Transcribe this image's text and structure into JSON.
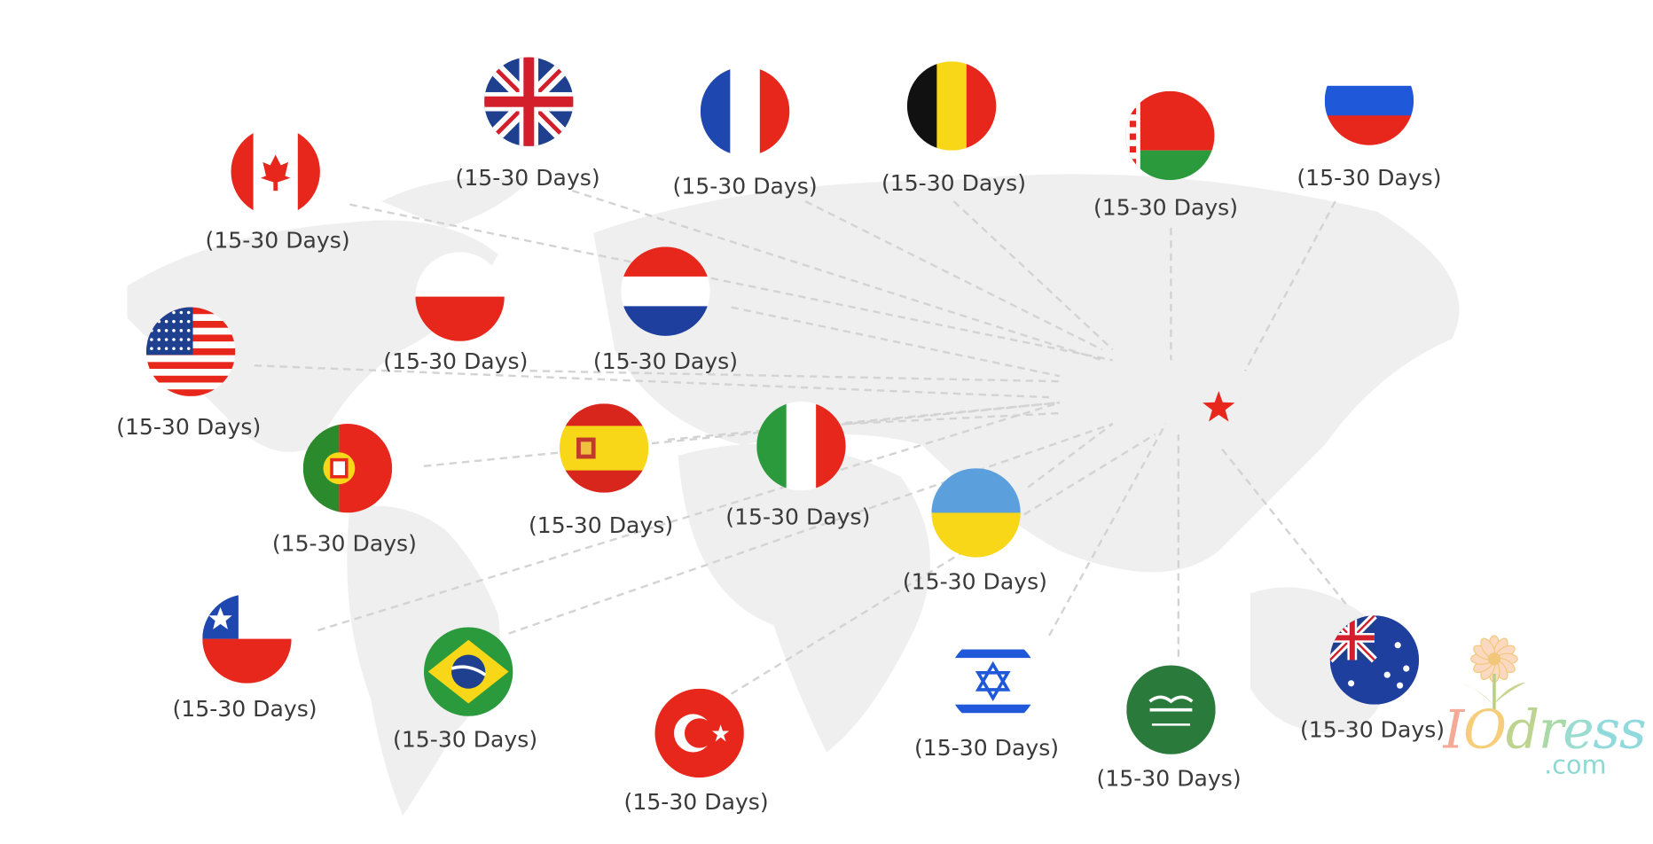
{
  "delivery_label": "(15-30 Days)",
  "origin_marker": {
    "icon": "star-icon",
    "color": "#e8271c"
  },
  "countries": [
    {
      "flag": "canada-flag-icon",
      "label": "(15-30 Days)"
    },
    {
      "flag": "uk-flag-icon",
      "label": "(15-30 Days)"
    },
    {
      "flag": "france-flag-icon",
      "label": "(15-30 Days)"
    },
    {
      "flag": "belgium-flag-icon",
      "label": "(15-30 Days)"
    },
    {
      "flag": "belarus-flag-icon",
      "label": "(15-30 Days)"
    },
    {
      "flag": "russia-flag-icon",
      "label": "(15-30 Days)"
    },
    {
      "flag": "poland-flag-icon",
      "label": "(15-30 Days)"
    },
    {
      "flag": "netherlands-flag-icon",
      "label": "(15-30 Days)"
    },
    {
      "flag": "usa-flag-icon",
      "label": "(15-30 Days)"
    },
    {
      "flag": "portugal-flag-icon",
      "label": "(15-30 Days)"
    },
    {
      "flag": "spain-flag-icon",
      "label": "(15-30 Days)"
    },
    {
      "flag": "italy-flag-icon",
      "label": "(15-30 Days)"
    },
    {
      "flag": "ukraine-flag-icon",
      "label": "(15-30 Days)"
    },
    {
      "flag": "chile-flag-icon",
      "label": "(15-30 Days)"
    },
    {
      "flag": "brazil-flag-icon",
      "label": "(15-30 Days)"
    },
    {
      "flag": "turkey-flag-icon",
      "label": "(15-30 Days)"
    },
    {
      "flag": "israel-flag-icon",
      "label": "(15-30 Days)"
    },
    {
      "flag": "saudi-arabia-flag-icon",
      "label": "(15-30 Days)"
    },
    {
      "flag": "australia-flag-icon",
      "label": "(15-30 Days)"
    }
  ],
  "logo": {
    "name": "IOdress",
    "domain": ".com"
  }
}
